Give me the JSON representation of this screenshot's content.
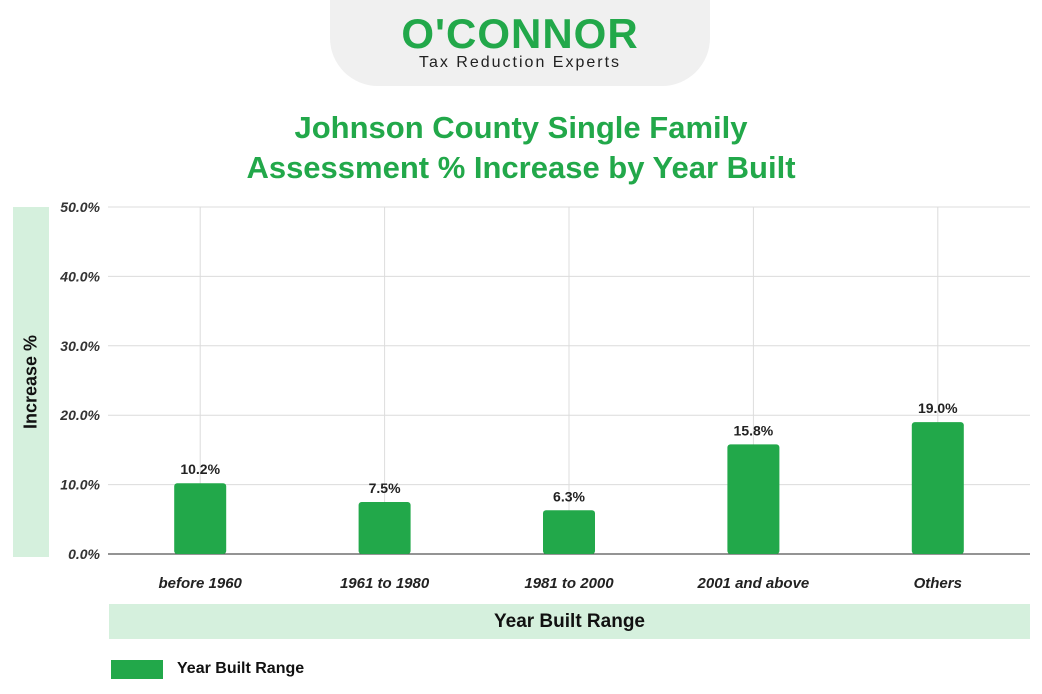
{
  "logo": {
    "name": "O'CONNOR",
    "tagline": "Tax Reduction Experts"
  },
  "colors": {
    "brand_green": "#22a84a",
    "band_green": "#d5f0dd",
    "logo_tab": "#f0f0f0"
  },
  "chart_data": {
    "type": "bar",
    "title_line1": "Johnson County Single Family",
    "title_line2": "Assessment % Increase by Year Built",
    "xlabel": "Year Built Range",
    "ylabel": "Increase %",
    "categories": [
      "before 1960",
      "1961 to 1980",
      "1981 to 2000",
      "2001 and above",
      "Others"
    ],
    "series": [
      {
        "name": "Year Built Range",
        "values": [
          10.2,
          7.5,
          6.3,
          15.8,
          19.0
        ],
        "value_labels": [
          "10.2%",
          "7.5%",
          "6.3%",
          "15.8%",
          "19.0%"
        ],
        "color": "#22a84a"
      }
    ],
    "ylim": [
      0,
      50
    ],
    "yticks": [
      0,
      10,
      20,
      30,
      40,
      50
    ],
    "ytick_labels": [
      "0.0%",
      "10.0%",
      "20.0%",
      "30.0%",
      "40.0%",
      "50.0%"
    ],
    "grid": true,
    "legend_position": "bottom-left"
  }
}
